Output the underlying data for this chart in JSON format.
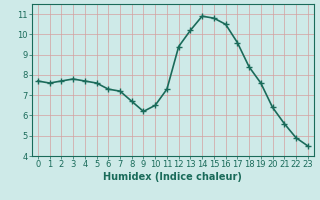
{
  "x": [
    0,
    1,
    2,
    3,
    4,
    5,
    6,
    7,
    8,
    9,
    10,
    11,
    12,
    13,
    14,
    15,
    16,
    17,
    18,
    19,
    20,
    21,
    22,
    23
  ],
  "y": [
    7.7,
    7.6,
    7.7,
    7.8,
    7.7,
    7.6,
    7.3,
    7.2,
    6.7,
    6.2,
    6.5,
    7.3,
    9.4,
    10.2,
    10.9,
    10.8,
    10.5,
    9.6,
    8.4,
    7.6,
    6.4,
    5.6,
    4.9,
    4.5
  ],
  "line_color": "#1a6b5a",
  "marker": "+",
  "marker_size": 4,
  "bg_color": "#ceeae8",
  "grid_color": "#d4a0a0",
  "xlabel": "Humidex (Indice chaleur)",
  "xlim": [
    -0.5,
    23.5
  ],
  "ylim": [
    4,
    11.5
  ],
  "yticks": [
    4,
    5,
    6,
    7,
    8,
    9,
    10,
    11
  ],
  "xticks": [
    0,
    1,
    2,
    3,
    4,
    5,
    6,
    7,
    8,
    9,
    10,
    11,
    12,
    13,
    14,
    15,
    16,
    17,
    18,
    19,
    20,
    21,
    22,
    23
  ],
  "xlabel_fontsize": 7,
  "tick_fontsize": 6,
  "line_width": 1.2,
  "spine_color": "#1a6b5a"
}
